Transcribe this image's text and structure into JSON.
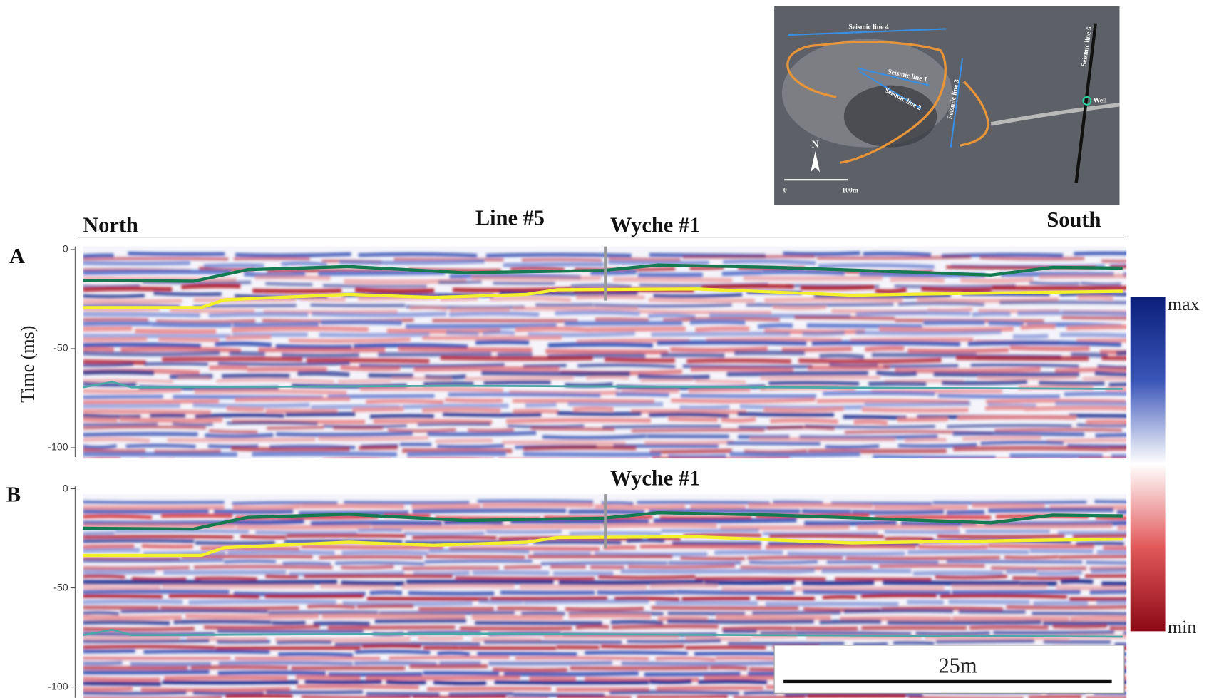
{
  "header": {
    "left": "North",
    "line": "Line #5",
    "well": "Wyche #1",
    "right": "South"
  },
  "panels": [
    {
      "label": "A",
      "axis_label": "Time (ms)",
      "yticks": [
        0,
        -50,
        -100
      ]
    },
    {
      "label": "B",
      "well": "Wyche #1",
      "yticks": [
        0,
        -50,
        -100
      ]
    }
  ],
  "colorbar": {
    "max": "max",
    "min": "min"
  },
  "scale_bar": "25m",
  "map": {
    "lines": [
      "Seismic line 4",
      "Seismic line 1",
      "Seismic line 2",
      "Seismic line 3",
      "Seismic line 5"
    ],
    "well": "Well",
    "north": "N",
    "scale": [
      "0",
      "100m"
    ]
  }
}
